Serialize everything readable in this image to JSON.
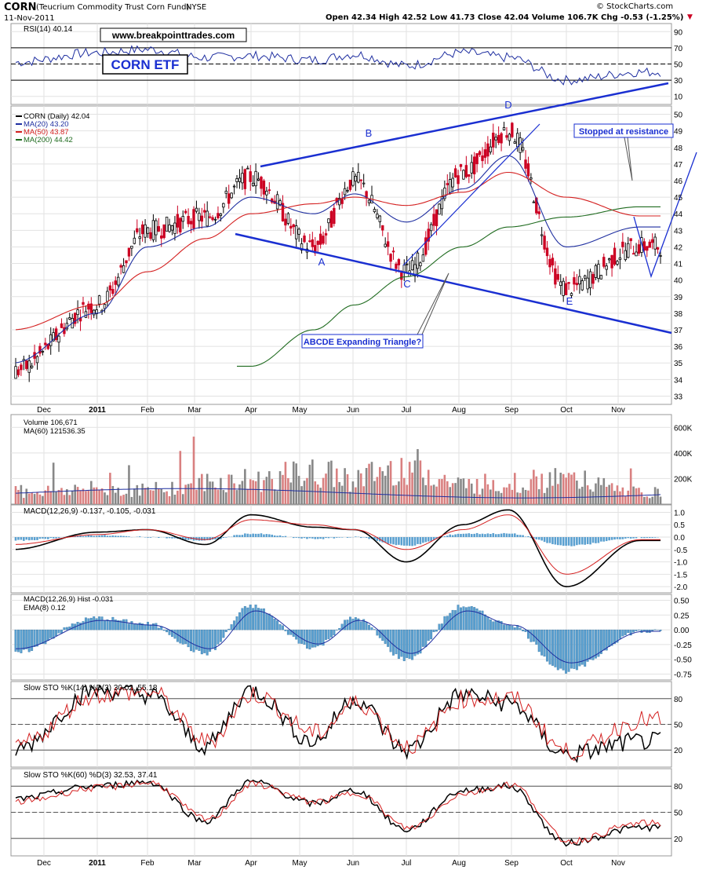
{
  "header": {
    "ticker": "CORN",
    "fund_name": "(Teucrium Commodity Trust Corn Fund)",
    "exchange": "NYSE",
    "date": "11-Nov-2011",
    "quote": "Open 42.34  High 42.52  Low 41.73  Close 42.04  Volume 106.7K  Chg -0.53 (-1.25%)",
    "chg_arrow": "▼",
    "watermark": "© StockCharts.com"
  },
  "annotations": {
    "website": "www.breakpointtrades.com",
    "corn_etf": "CORN ETF",
    "triangle_label": "ABCDE Expanding Triangle?",
    "resistance_label": "Stopped at resistance",
    "points": [
      "A",
      "B",
      "C",
      "D",
      "E"
    ]
  },
  "colors": {
    "price_up": "#000000",
    "price_down": "#cc0022",
    "ma20": "#1e2ea0",
    "ma50": "#d42020",
    "ma200": "#1f6b1f",
    "trendline": "#1a2fd1",
    "volume_up": "#888888",
    "volume_down": "#d98080",
    "macd_hist": "#5aa0d0",
    "annotation_blue": "#1a2fd1"
  },
  "x_axis": {
    "labels": [
      "Dec",
      "2011",
      "Feb",
      "Mar",
      "Apr",
      "May",
      "Jun",
      "Jul",
      "Aug",
      "Sep",
      "Oct",
      "Nov"
    ]
  },
  "chart_data": [
    {
      "panel": "rsi",
      "type": "line",
      "legend": "RSI(14) 40.14",
      "ylim": [
        0,
        100
      ],
      "ticks": [
        90,
        70,
        50,
        30,
        10
      ],
      "reference_lines": [
        70,
        50,
        30
      ],
      "x": [
        "Dec",
        "2011",
        "Feb",
        "Mar",
        "Apr",
        "May",
        "Jun",
        "Jul",
        "Aug",
        "Sep",
        "Oct",
        "Nov"
      ],
      "values": [
        52,
        64,
        68,
        58,
        60,
        55,
        62,
        48,
        64,
        58,
        30,
        40
      ]
    },
    {
      "panel": "price",
      "type": "candlestick",
      "legend": [
        "CORN (Daily) 42.04",
        "MA(20) 43.20",
        "MA(50) 43.87",
        "MA(200) 44.42"
      ],
      "ylim": [
        33,
        50
      ],
      "ticks": [
        50,
        49,
        48,
        47,
        46,
        45,
        44,
        43,
        42,
        41,
        40,
        39,
        38,
        37,
        36,
        35,
        34,
        33
      ],
      "x": [
        "Dec",
        "2011",
        "Feb",
        "Mar",
        "Apr",
        "May",
        "Jun",
        "Jul",
        "Aug",
        "Sep",
        "Oct",
        "Nov"
      ],
      "series": [
        {
          "name": "CORN (Daily) 42.04",
          "values": [
            34.5,
            38.5,
            43.0,
            43.8,
            46.2,
            42.0,
            46.0,
            40.5,
            46.5,
            49.0,
            39.5,
            42.04
          ]
        },
        {
          "name": "MA(20) 43.20",
          "values": [
            35.0,
            38.0,
            42.0,
            43.2,
            45.0,
            44.0,
            45.2,
            43.5,
            45.5,
            47.5,
            42.0,
            43.2
          ]
        },
        {
          "name": "MA(50) 43.87",
          "values": [
            37.0,
            38.5,
            40.5,
            42.5,
            44.0,
            44.6,
            45.0,
            44.5,
            45.3,
            46.5,
            45.0,
            43.87
          ]
        },
        {
          "name": "MA(200) 44.42",
          "values": [
            null,
            null,
            null,
            null,
            34.8,
            37.0,
            38.5,
            40.2,
            42.0,
            43.2,
            43.8,
            44.42
          ]
        }
      ],
      "pattern_points": {
        "A": 41.0,
        "B": 47.5,
        "C": 40.0,
        "D": 50.0,
        "E": 38.5
      }
    },
    {
      "panel": "volume",
      "type": "bar",
      "legend": [
        "Volume 106,671",
        "MA(60) 121536.35"
      ],
      "ylim": [
        0,
        700000
      ],
      "ticks": [
        "600K",
        "400K",
        "200K"
      ],
      "x": [
        "Dec",
        "2011",
        "Feb",
        "Mar",
        "Apr",
        "May",
        "Jun",
        "Jul",
        "Aug",
        "Sep",
        "Oct",
        "Nov"
      ],
      "values": [
        120000,
        140000,
        130000,
        200000,
        220000,
        280000,
        240000,
        350000,
        180000,
        200000,
        220000,
        106671
      ],
      "ma60": 121536.35
    },
    {
      "panel": "macd",
      "type": "line",
      "legend": "MACD(12,26,9) -0.137, -0.105, -0.031",
      "ylim": [
        -2.0,
        1.0
      ],
      "ticks": [
        1.0,
        0.5,
        0.0,
        -0.5,
        -1.0,
        -1.5,
        -2.0
      ],
      "x": [
        "Dec",
        "2011",
        "Feb",
        "Mar",
        "Apr",
        "May",
        "Jun",
        "Jul",
        "Aug",
        "Sep",
        "Oct",
        "Nov"
      ],
      "series": [
        {
          "name": "MACD",
          "values": [
            -0.5,
            0.2,
            0.3,
            -0.3,
            0.9,
            0.4,
            0.3,
            -1.0,
            0.5,
            1.1,
            -2.0,
            -0.137
          ]
        },
        {
          "name": "Signal",
          "values": [
            -0.3,
            0.1,
            0.3,
            -0.1,
            0.7,
            0.5,
            0.3,
            -0.5,
            0.3,
            0.9,
            -1.5,
            -0.105
          ]
        }
      ]
    },
    {
      "panel": "macd_hist",
      "type": "bar",
      "legend": [
        "MACD(12,26,9) Hist -0.031",
        "EMA(8) 0.12"
      ],
      "ylim": [
        -0.75,
        0.5
      ],
      "ticks": [
        0.5,
        0.25,
        0.0,
        -0.25,
        -0.5,
        -0.75
      ],
      "x": [
        "Dec",
        "2011",
        "Feb",
        "Mar",
        "Apr",
        "May",
        "Jun",
        "Jul",
        "Aug",
        "Sep",
        "Oct",
        "Nov"
      ],
      "values": [
        -0.4,
        0.2,
        0.1,
        -0.4,
        0.4,
        -0.3,
        0.2,
        -0.5,
        0.4,
        0.1,
        -0.7,
        -0.031
      ]
    },
    {
      "panel": "sto14",
      "type": "line",
      "legend": "Slow STO %K(14) %D(3) 30.02, 55.18",
      "ylim": [
        0,
        100
      ],
      "ticks": [
        80,
        50,
        20
      ],
      "x": [
        "Dec",
        "2011",
        "Feb",
        "Mar",
        "Apr",
        "May",
        "Jun",
        "Jul",
        "Aug",
        "Sep",
        "Oct",
        "Nov"
      ],
      "series": [
        {
          "name": "%K",
          "values": [
            20,
            90,
            85,
            25,
            90,
            30,
            80,
            20,
            85,
            75,
            15,
            30.02
          ]
        },
        {
          "name": "%D",
          "values": [
            25,
            85,
            88,
            30,
            85,
            40,
            75,
            25,
            80,
            80,
            18,
            55.18
          ]
        }
      ]
    },
    {
      "panel": "sto60",
      "type": "line",
      "legend": "Slow STO %K(60) %D(3) 32.53, 37.41",
      "ylim": [
        0,
        100
      ],
      "ticks": [
        80,
        50,
        20
      ],
      "x": [
        "Dec",
        "2011",
        "Feb",
        "Mar",
        "Apr",
        "May",
        "Jun",
        "Jul",
        "Aug",
        "Sep",
        "Oct",
        "Nov"
      ],
      "series": [
        {
          "name": "%K",
          "values": [
            65,
            80,
            85,
            40,
            85,
            60,
            75,
            30,
            75,
            80,
            15,
            32.53
          ]
        },
        {
          "name": "%D",
          "values": [
            62,
            78,
            84,
            42,
            82,
            62,
            72,
            32,
            72,
            82,
            17,
            37.41
          ]
        }
      ]
    }
  ]
}
